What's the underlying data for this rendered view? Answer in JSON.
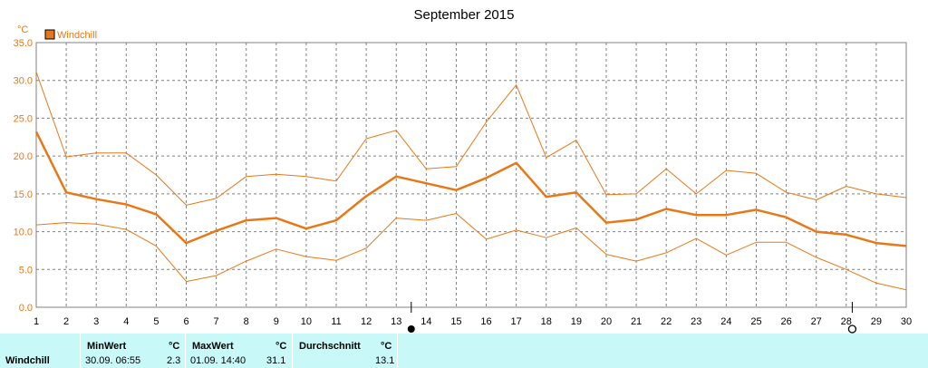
{
  "chart_data": {
    "type": "line",
    "title": "September 2015",
    "unit_label": "°C",
    "legend": [
      {
        "name": "Windchill",
        "color": "#e87817"
      }
    ],
    "x": [
      1,
      2,
      3,
      4,
      5,
      6,
      7,
      8,
      9,
      10,
      11,
      12,
      13,
      14,
      15,
      16,
      17,
      18,
      19,
      20,
      21,
      22,
      23,
      24,
      25,
      26,
      27,
      28,
      29,
      30
    ],
    "x_tick_labels": [
      "1",
      "2",
      "3",
      "4",
      "5",
      "6",
      "7",
      "8",
      "9",
      "10",
      "11",
      "12",
      "13",
      "14",
      "15",
      "16",
      "17",
      "18",
      "19",
      "20",
      "21",
      "22",
      "23",
      "24",
      "25",
      "26",
      "27",
      "28",
      "29",
      "30"
    ],
    "ylim": [
      0,
      35
    ],
    "y_ticks": [
      0,
      5,
      10,
      15,
      20,
      25,
      30,
      35
    ],
    "y_tick_labels": [
      "0.0",
      "5.0",
      "10.0",
      "15.0",
      "20.0",
      "25.0",
      "30.0",
      "35.0"
    ],
    "grid": true,
    "legend_position": "top-left",
    "series": [
      {
        "role": "max",
        "color": "#e87817",
        "width": 1,
        "values": [
          31.1,
          19.9,
          20.4,
          20.4,
          17.5,
          13.5,
          14.4,
          17.3,
          17.6,
          17.3,
          16.7,
          22.3,
          23.4,
          18.3,
          18.6,
          24.5,
          29.4,
          19.8,
          22.1,
          14.9,
          15.0,
          18.3,
          15.0,
          18.1,
          17.7,
          15.2,
          14.2,
          16.0,
          15.0,
          14.5
        ]
      },
      {
        "role": "avg",
        "color": "#e87817",
        "width": 2.5,
        "values": [
          23.2,
          15.2,
          14.3,
          13.6,
          12.3,
          8.5,
          10.1,
          11.5,
          11.8,
          10.4,
          11.5,
          14.7,
          17.3,
          16.4,
          15.5,
          17.1,
          19.1,
          14.6,
          15.2,
          11.2,
          11.6,
          13.0,
          12.2,
          12.2,
          12.9,
          11.9,
          10.0,
          9.6,
          8.5,
          8.1
        ]
      },
      {
        "role": "min",
        "color": "#e87817",
        "width": 1,
        "values": [
          10.9,
          11.2,
          11.0,
          10.3,
          8.1,
          3.4,
          4.2,
          6.1,
          7.7,
          6.7,
          6.2,
          7.8,
          11.8,
          11.5,
          12.4,
          9.0,
          10.2,
          9.2,
          10.5,
          7.0,
          6.1,
          7.2,
          9.1,
          6.9,
          8.6,
          8.6,
          6.6,
          5.0,
          3.2,
          2.3
        ]
      }
    ],
    "markers": [
      {
        "type": "full-moon",
        "x": 13.5,
        "symbol": "●"
      },
      {
        "type": "new-moon",
        "x": 28.2,
        "symbol": "◯"
      }
    ]
  },
  "summary": {
    "row_label": "Windchill",
    "min_header": "MinWert",
    "max_header": "MaxWert",
    "avg_header": "Durchschnitt",
    "unit": "°C",
    "min_time": "30.09.  06:55",
    "min_value": "2.3",
    "max_time": "01.09.  14:40",
    "max_value": "31.1",
    "avg_value": "13.1"
  }
}
